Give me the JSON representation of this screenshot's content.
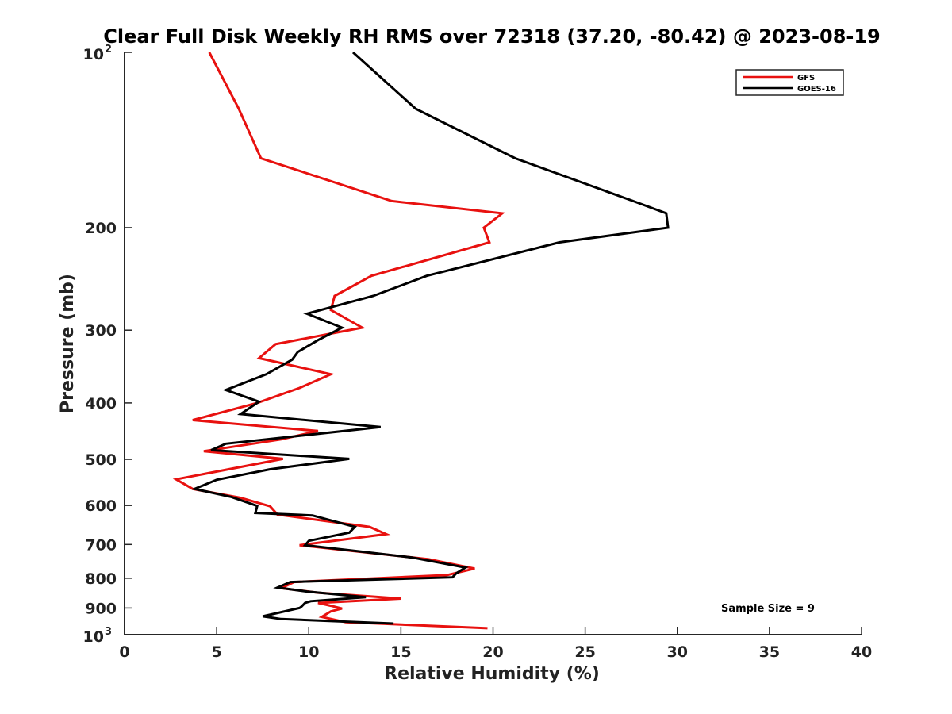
{
  "chart_data": {
    "type": "line",
    "title": "Clear Full Disk Weekly RH RMS over 72318 (37.20, -80.42) @ 2023-08-19",
    "xlabel": "Relative Humidity (%)",
    "ylabel": "Pressure (mb)",
    "xlim": [
      0,
      40
    ],
    "ylim": [
      100,
      1000
    ],
    "y_scale": "log",
    "y_reversed": true,
    "grid": false,
    "legend_position": "top-right",
    "x_ticks": [
      "0",
      "5",
      "10",
      "15",
      "20",
      "25",
      "30",
      "35",
      "40"
    ],
    "y_ticks": [
      {
        "value": 100,
        "base": "10",
        "exp": "2"
      },
      {
        "value": 200,
        "label": "200"
      },
      {
        "value": 300,
        "label": "300"
      },
      {
        "value": 400,
        "label": "400"
      },
      {
        "value": 500,
        "label": "500"
      },
      {
        "value": 600,
        "label": "600"
      },
      {
        "value": 700,
        "label": "700"
      },
      {
        "value": 800,
        "label": "800"
      },
      {
        "value": 900,
        "label": "900"
      },
      {
        "value": 1000,
        "base": "10",
        "exp": "3"
      }
    ],
    "series": [
      {
        "name": "GFS",
        "color": "#e8110f",
        "points": [
          [
            4.6,
            100
          ],
          [
            6.2,
            125
          ],
          [
            7.4,
            152
          ],
          [
            14.5,
            180
          ],
          [
            20.5,
            189
          ],
          [
            19.5,
            200
          ],
          [
            19.8,
            212
          ],
          [
            13.4,
            242
          ],
          [
            11.4,
            262
          ],
          [
            11.2,
            277
          ],
          [
            12.9,
            297
          ],
          [
            8.2,
            317
          ],
          [
            7.3,
            335
          ],
          [
            11.2,
            357
          ],
          [
            9.5,
            377
          ],
          [
            7.2,
            400
          ],
          [
            3.7,
            428
          ],
          [
            10.5,
            447
          ],
          [
            8.5,
            462
          ],
          [
            4.3,
            484
          ],
          [
            8.6,
            499
          ],
          [
            2.8,
            541
          ],
          [
            3.7,
            562
          ],
          [
            6.3,
            582
          ],
          [
            7.9,
            602
          ],
          [
            8.3,
            622
          ],
          [
            13.3,
            653
          ],
          [
            14.2,
            672
          ],
          [
            9.5,
            702
          ],
          [
            16.5,
            742
          ],
          [
            19.0,
            770
          ],
          [
            17.5,
            790
          ],
          [
            9.2,
            812
          ],
          [
            8.5,
            832
          ],
          [
            10.5,
            847
          ],
          [
            15.0,
            867
          ],
          [
            10.5,
            882
          ],
          [
            11.2,
            892
          ],
          [
            11.8,
            902
          ],
          [
            11.2,
            912
          ],
          [
            10.7,
            932
          ],
          [
            12.0,
            952
          ],
          [
            19.7,
            975
          ]
        ]
      },
      {
        "name": "GOES-16",
        "color": "#000000",
        "points": [
          [
            12.4,
            100
          ],
          [
            15.8,
            125
          ],
          [
            21.2,
            152
          ],
          [
            27.6,
            180
          ],
          [
            29.4,
            189
          ],
          [
            29.5,
            200
          ],
          [
            23.6,
            212
          ],
          [
            16.4,
            242
          ],
          [
            13.5,
            262
          ],
          [
            9.9,
            281
          ],
          [
            11.8,
            297
          ],
          [
            10.5,
            312
          ],
          [
            9.4,
            327
          ],
          [
            9.1,
            337
          ],
          [
            7.7,
            357
          ],
          [
            5.5,
            380
          ],
          [
            7.3,
            398
          ],
          [
            6.3,
            418
          ],
          [
            13.9,
            440
          ],
          [
            5.5,
            470
          ],
          [
            4.7,
            482
          ],
          [
            12.2,
            499
          ],
          [
            7.9,
            520
          ],
          [
            5.0,
            542
          ],
          [
            3.8,
            562
          ],
          [
            5.8,
            580
          ],
          [
            7.2,
            601
          ],
          [
            7.1,
            618
          ],
          [
            10.2,
            624
          ],
          [
            12.5,
            653
          ],
          [
            12.2,
            668
          ],
          [
            10.0,
            690
          ],
          [
            9.8,
            702
          ],
          [
            12.5,
            718
          ],
          [
            15.6,
            737
          ],
          [
            18.5,
            767
          ],
          [
            18.0,
            785
          ],
          [
            17.8,
            797
          ],
          [
            9.0,
            812
          ],
          [
            8.3,
            830
          ],
          [
            9.9,
            843
          ],
          [
            13.1,
            862
          ],
          [
            10.1,
            876
          ],
          [
            9.8,
            882
          ],
          [
            9.6,
            895
          ],
          [
            9.5,
            900
          ],
          [
            7.5,
            930
          ],
          [
            8.5,
            940
          ],
          [
            14.6,
            957
          ]
        ]
      }
    ],
    "annotation": "Sample Size = 9"
  }
}
